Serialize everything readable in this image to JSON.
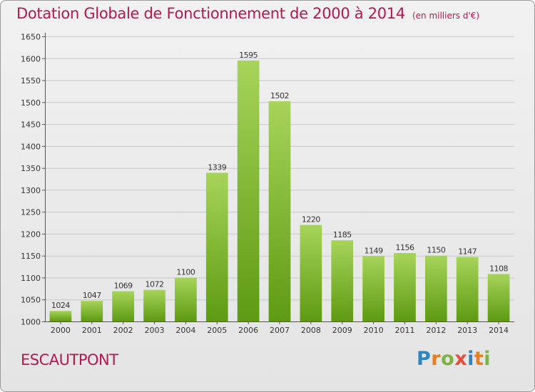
{
  "title": "Dotation Globale de Fonctionnement de 2000 à 2014",
  "subtitle": "(en milliers d'€)",
  "commune": "ESCAUTPONT",
  "logo": {
    "text": "Proxiti",
    "letter_colors": [
      "#2e86c1",
      "#e67e22",
      "#7cb342",
      "#e74c3c",
      "#2e86c1",
      "#e67e22",
      "#7cb342"
    ]
  },
  "colors": {
    "title": "#b3184f",
    "bar_top": "#a6d45a",
    "bar_bottom": "#5e9a12",
    "grid": "#c8c8c8"
  },
  "chart_data": {
    "type": "bar",
    "categories": [
      "2000",
      "2001",
      "2002",
      "2003",
      "2004",
      "2005",
      "2006",
      "2007",
      "2008",
      "2009",
      "2010",
      "2011",
      "2012",
      "2013",
      "2014"
    ],
    "values": [
      1024,
      1047,
      1069,
      1072,
      1100,
      1339,
      1595,
      1502,
      1220,
      1185,
      1149,
      1156,
      1150,
      1147,
      1108
    ],
    "yticks": [
      1000,
      1050,
      1100,
      1150,
      1200,
      1250,
      1300,
      1350,
      1400,
      1450,
      1500,
      1550,
      1600,
      1650
    ],
    "ylim": [
      1000,
      1650
    ],
    "grid": true,
    "data_labels": true
  }
}
